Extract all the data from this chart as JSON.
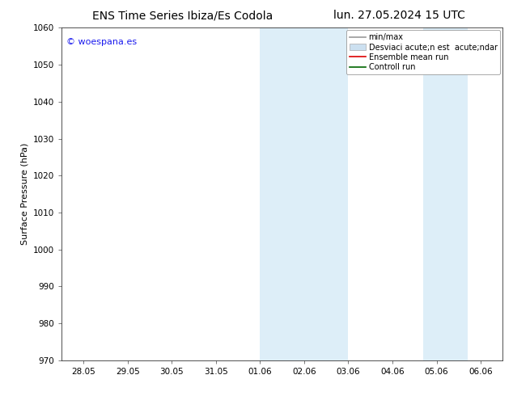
{
  "title_left": "ENS Time Series Ibiza/Es Codola",
  "title_right": "lun. 27.05.2024 15 UTC",
  "ylabel": "Surface Pressure (hPa)",
  "ylim": [
    970,
    1060
  ],
  "yticks": [
    970,
    980,
    990,
    1000,
    1010,
    1020,
    1030,
    1040,
    1050,
    1060
  ],
  "xtick_labels": [
    "28.05",
    "29.05",
    "30.05",
    "31.05",
    "01.06",
    "02.06",
    "03.06",
    "04.06",
    "05.06",
    "06.06"
  ],
  "xtick_positions": [
    0,
    1,
    2,
    3,
    4,
    5,
    6,
    7,
    8,
    9
  ],
  "shaded_regions": [
    {
      "xmin": 4.0,
      "xmax": 6.0
    },
    {
      "xmin": 7.7,
      "xmax": 8.7
    }
  ],
  "shaded_color": "#ddeef8",
  "watermark_text": "© woespana.es",
  "watermark_color": "#1a1aee",
  "legend_entries": [
    {
      "label": "min/max",
      "color": "#999999",
      "lw": 1.2,
      "type": "line"
    },
    {
      "label": "Desviaci acute;n est  acute;ndar",
      "color": "#cce0f0",
      "type": "patch"
    },
    {
      "label": "Ensemble mean run",
      "color": "#dd0000",
      "lw": 1.2,
      "type": "line"
    },
    {
      "label": "Controll run",
      "color": "#006600",
      "lw": 1.2,
      "type": "line"
    }
  ],
  "bg_color": "#ffffff",
  "title_fontsize": 10,
  "label_fontsize": 8,
  "tick_fontsize": 7.5,
  "watermark_fontsize": 8,
  "legend_fontsize": 7
}
